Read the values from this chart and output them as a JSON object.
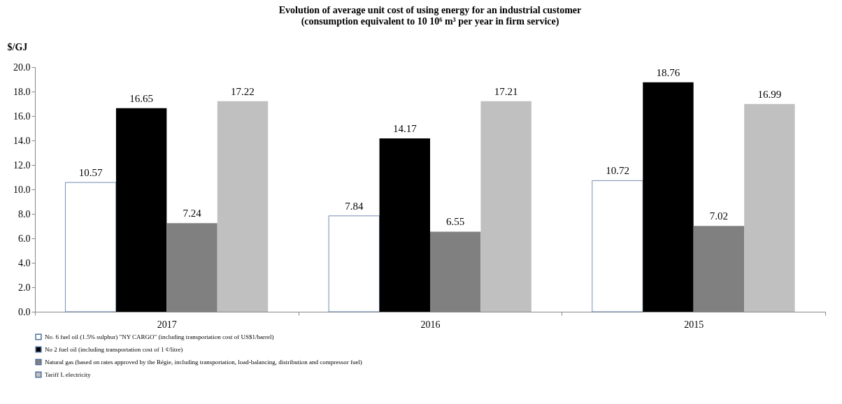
{
  "chart_data": {
    "type": "bar",
    "title": "Evolution of average unit cost of using energy for an industrial customer\n(consumption equivalent to 10 10⁶ m³ per year in firm service)",
    "ylabel": "$/GJ",
    "categories": [
      "2017",
      "2016",
      "2015"
    ],
    "series": [
      {
        "name": "No. 6 fuel oil (1.5% sulphur) \"NY CARGO\" (including transportation cost of US$1/barrel)",
        "color": "#ffffff",
        "values": [
          10.57,
          7.84,
          10.72
        ]
      },
      {
        "name": "No 2 fuel oil (including transportation cost of 1 ¢/litre)",
        "color": "#000000",
        "values": [
          16.65,
          14.17,
          18.76
        ]
      },
      {
        "name": "Natural gas (based on rates approved by the Régie, including transportation, load-balancing, distribution and compressor fuel)",
        "color": "#808080",
        "values": [
          7.24,
          6.55,
          7.02
        ]
      },
      {
        "name": "Tariff L electricity",
        "color": "#c0c0c0",
        "values": [
          17.22,
          17.21,
          16.99
        ]
      }
    ],
    "ylim": [
      0,
      20
    ],
    "yticks": [
      {
        "value": 0,
        "label": "0.0"
      },
      {
        "value": 2,
        "label": "2.0"
      },
      {
        "value": 4,
        "label": "4.0"
      },
      {
        "value": 6,
        "label": "6.0"
      },
      {
        "value": 8,
        "label": "8.0"
      },
      {
        "value": 10,
        "label": "10.0"
      },
      {
        "value": 12,
        "label": "12.0"
      },
      {
        "value": 14,
        "label": "14.0"
      },
      {
        "value": 16,
        "label": "16.0"
      },
      {
        "value": 18,
        "label": "18.0"
      },
      {
        "value": 20,
        "label": "20.0"
      }
    ],
    "data_labels": true,
    "grid": false,
    "legend": "bottom"
  }
}
